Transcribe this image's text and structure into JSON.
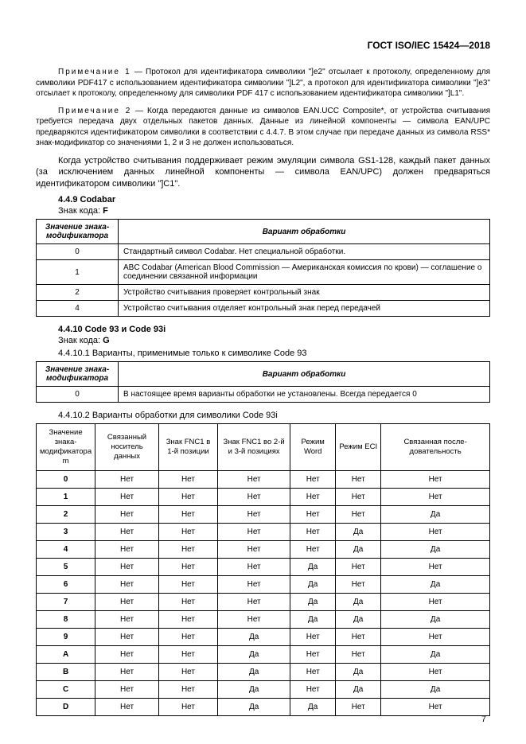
{
  "doc_header": "ГОСТ ISO/IEC 15424—2018",
  "note1_label": "Примечание 1",
  "note1_text": " — Протокол для идентификатора символики \"]e2\" отсылает к протоколу, определенному для символики PDF417 с использованием идентификатора символики \"]L2\", а протокол для идентификатора символики \"]e3\" отсылает к протоколу, определенному для символики PDF 417 с использованием идентификатора символики \"]L1\".",
  "note2_label": "Примечание 2",
  "note2_text": " — Когда передаются данные из символов EAN.UCC Composite*, от устройства считывания требуется передача двух отдельных пакетов данных. Данные из линейной компоненты — символа EAN/UPC предваряются идентификатором символики в соответствии с 4.4.7. В этом случае при передаче данных из символа RSS* знак-модификатор со значениями 1, 2 и 3 не должен использоваться.",
  "para1": "Когда устройство считывания поддерживает режим эмуляции символа GS1-128, каждый пакет данных (за исключением данных линейной компоненты — символа EAN/UPC) должен предваряться идентификатором символики \"]C1\".",
  "sec449": "4.4.9 Codabar",
  "code_f_label": "Знак кода: ",
  "code_f": "F",
  "t1_h1": "Значение знака-модификатора",
  "t1_h2": "Вариант обработки",
  "t1_rows": [
    {
      "m": "0",
      "d": "Стандартный символ Codabar. Нет специальной обработки."
    },
    {
      "m": "1",
      "d": "ABC Codabar (American Blood Commission — Американская комиссия по крови) — соглашение о соединении связанной информации"
    },
    {
      "m": "2",
      "d": "Устройство считывания проверяет контрольный знак"
    },
    {
      "m": "4",
      "d": "Устройство считывания отделяет контрольный знак перед передачей"
    }
  ],
  "sec4410": "4.4.10 Code 93 и Code 93i",
  "code_g_label": "Знак кода: ",
  "code_g": "G",
  "sec44101": "4.4.10.1 Варианты, применимые только к символике Code 93",
  "t2_h1": "Значение знака-модификатора",
  "t2_h2": "Вариант обработки",
  "t2_row": {
    "m": "0",
    "d": "В настоящее время варианты обработки не установлены. Всегда передается 0"
  },
  "sec44102": "4.4.10.2 Варианты обработки для символики Code 93i",
  "t3_headers": [
    "Значение знака-модификатора m",
    "Связанный носитель данных",
    "Знак FNC1 в 1-й позиции",
    "Знак FNC1 во 2-й и 3-й позициях",
    "Режим Word",
    "Режим ECI",
    "Связанная после-довательность"
  ],
  "t3_rows": [
    {
      "m": "0",
      "c": [
        "Нет",
        "Нет",
        "Нет",
        "Нет",
        "Нет",
        "Нет"
      ]
    },
    {
      "m": "1",
      "c": [
        "Нет",
        "Нет",
        "Нет",
        "Нет",
        "Нет",
        "Нет"
      ]
    },
    {
      "m": "2",
      "c": [
        "Нет",
        "Нет",
        "Нет",
        "Нет",
        "Нет",
        "Да"
      ]
    },
    {
      "m": "3",
      "c": [
        "Нет",
        "Нет",
        "Нет",
        "Нет",
        "Да",
        "Нет"
      ]
    },
    {
      "m": "4",
      "c": [
        "Нет",
        "Нет",
        "Нет",
        "Нет",
        "Да",
        "Да"
      ]
    },
    {
      "m": "5",
      "c": [
        "Нет",
        "Нет",
        "Нет",
        "Да",
        "Нет",
        "Нет"
      ]
    },
    {
      "m": "6",
      "c": [
        "Нет",
        "Нет",
        "Нет",
        "Да",
        "Нет",
        "Да"
      ]
    },
    {
      "m": "7",
      "c": [
        "Нет",
        "Нет",
        "Нет",
        "Да",
        "Да",
        "Нет"
      ]
    },
    {
      "m": "8",
      "c": [
        "Нет",
        "Нет",
        "Нет",
        "Да",
        "Да",
        "Да"
      ]
    },
    {
      "m": "9",
      "c": [
        "Нет",
        "Нет",
        "Да",
        "Нет",
        "Нет",
        "Нет"
      ]
    },
    {
      "m": "A",
      "c": [
        "Нет",
        "Нет",
        "Да",
        "Нет",
        "Нет",
        "Да"
      ]
    },
    {
      "m": "B",
      "c": [
        "Нет",
        "Нет",
        "Да",
        "Нет",
        "Да",
        "Нет"
      ]
    },
    {
      "m": "C",
      "c": [
        "Нет",
        "Нет",
        "Да",
        "Нет",
        "Да",
        "Да"
      ]
    },
    {
      "m": "D",
      "c": [
        "Нет",
        "Нет",
        "Да",
        "Да",
        "Нет",
        "Нет"
      ]
    }
  ],
  "page_number": "7"
}
